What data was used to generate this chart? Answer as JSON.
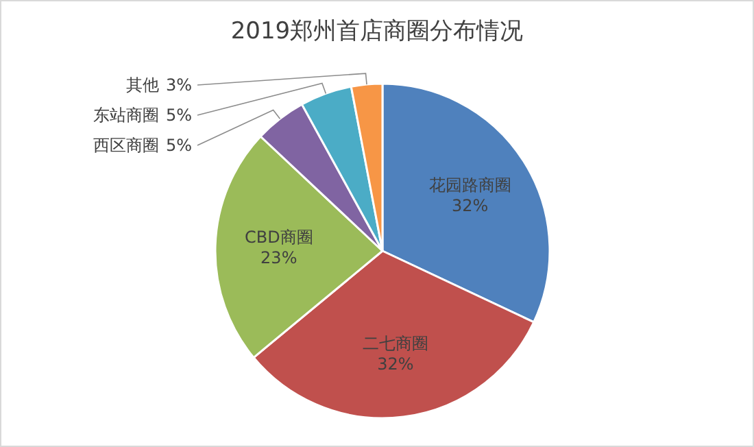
{
  "chart_data": {
    "type": "pie",
    "title": "2019郑州首店商圈分布情况",
    "categories": [
      "花园路商圈",
      "二七商圈",
      "CBD商圈",
      "西区商圈",
      "东站商圈",
      "其他"
    ],
    "values": [
      32,
      32,
      23,
      5,
      5,
      3
    ],
    "value_labels": [
      "32%",
      "32%",
      "23%",
      "5%",
      "5%",
      "3%"
    ],
    "colors": [
      "#4f81bd",
      "#c0504d",
      "#9bbb59",
      "#8064a2",
      "#4bacc6",
      "#f79646"
    ],
    "legend": false
  }
}
